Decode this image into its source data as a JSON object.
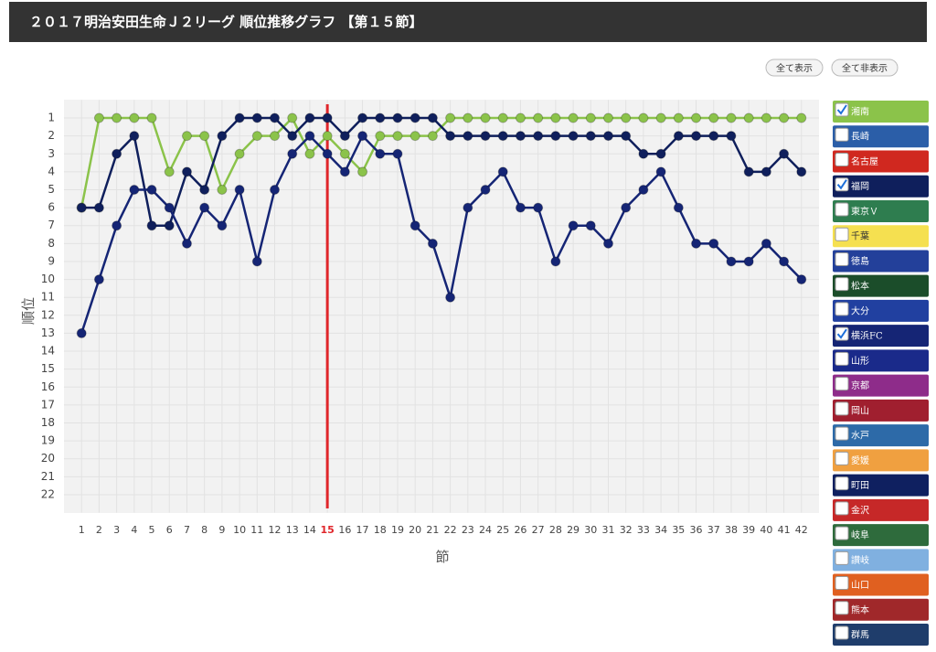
{
  "buttons": [
    "全て表示",
    "全て非表示"
  ],
  "chart_data": {
    "type": "line",
    "title": "２０１７明治安田生命Ｊ２リーグ 順位推移グラフ 【第１５節】",
    "x_label": "節",
    "y_label": "順位",
    "x": [
      1,
      2,
      3,
      4,
      5,
      6,
      7,
      8,
      9,
      10,
      11,
      12,
      13,
      14,
      15,
      16,
      17,
      18,
      19,
      20,
      21,
      22,
      23,
      24,
      25,
      26,
      27,
      28,
      29,
      30,
      31,
      32,
      33,
      34,
      35,
      36,
      37,
      38,
      39,
      40,
      41,
      42
    ],
    "xlim": [
      0,
      43
    ],
    "xticks": [
      1,
      2,
      3,
      4,
      5,
      6,
      7,
      8,
      9,
      10,
      11,
      12,
      13,
      14,
      15,
      16,
      17,
      18,
      19,
      20,
      21,
      22,
      23,
      24,
      25,
      26,
      27,
      28,
      29,
      30,
      31,
      32,
      33,
      34,
      35,
      36,
      37,
      38,
      39,
      40,
      41,
      42
    ],
    "ylim": [
      23,
      0
    ],
    "yticks": [
      1,
      2,
      3,
      4,
      5,
      6,
      7,
      8,
      9,
      10,
      11,
      12,
      13,
      14,
      15,
      16,
      17,
      18,
      19,
      20,
      21,
      22
    ],
    "grid": true,
    "current_round": 15,
    "current_color": "#e0262b",
    "series": [
      {
        "name": "湘南",
        "color": "#8bc34a",
        "checked": true,
        "values": [
          6,
          1,
          1,
          1,
          1,
          4,
          2,
          2,
          5,
          3,
          2,
          2,
          1,
          3,
          2,
          3,
          4,
          2,
          2,
          2,
          2,
          1,
          1,
          1,
          1,
          1,
          1,
          1,
          1,
          1,
          1,
          1,
          1,
          1,
          1,
          1,
          1,
          1,
          1,
          1,
          1,
          1
        ]
      },
      {
        "name": "長崎",
        "color": "#2b5ea8",
        "checked": false
      },
      {
        "name": "名古屋",
        "color": "#d0281f",
        "checked": false
      },
      {
        "name": "福岡",
        "color": "#0f1f5c",
        "checked": true,
        "values": [
          6,
          6,
          3,
          2,
          7,
          7,
          4,
          5,
          2,
          1,
          1,
          1,
          2,
          1,
          1,
          2,
          1,
          1,
          1,
          1,
          1,
          2,
          2,
          2,
          2,
          2,
          2,
          2,
          2,
          2,
          2,
          2,
          3,
          3,
          2,
          2,
          2,
          2,
          4,
          4,
          3,
          4
        ]
      },
      {
        "name": "東京Ｖ",
        "color": "#2e7d4f",
        "checked": false
      },
      {
        "name": "千葉",
        "color": "#f5e050",
        "checked": false
      },
      {
        "name": "徳島",
        "color": "#23409a",
        "checked": false
      },
      {
        "name": "松本",
        "color": "#1b4d2a",
        "checked": false
      },
      {
        "name": "大分",
        "color": "#2140a0",
        "checked": false
      },
      {
        "name": "横浜FC",
        "color": "#152575",
        "checked": true,
        "values": [
          13,
          10,
          7,
          5,
          5,
          6,
          8,
          6,
          7,
          5,
          9,
          5,
          3,
          2,
          3,
          4,
          2,
          3,
          3,
          7,
          8,
          11,
          6,
          5,
          4,
          6,
          6,
          9,
          7,
          7,
          8,
          6,
          5,
          4,
          6,
          8,
          8,
          9,
          9,
          8,
          9,
          10
        ]
      },
      {
        "name": "山形",
        "color": "#1a2a8a",
        "checked": false
      },
      {
        "name": "京都",
        "color": "#8e2c8a",
        "checked": false
      },
      {
        "name": "岡山",
        "color": "#a01f2f",
        "checked": false
      },
      {
        "name": "水戸",
        "color": "#2d6aa8",
        "checked": false
      },
      {
        "name": "愛媛",
        "color": "#f0a040",
        "checked": false
      },
      {
        "name": "町田",
        "color": "#0f2060",
        "checked": false
      },
      {
        "name": "金沢",
        "color": "#c62828",
        "checked": false
      },
      {
        "name": "岐阜",
        "color": "#2e6b3c",
        "checked": false
      },
      {
        "name": "讃岐",
        "color": "#80b0e0",
        "checked": false
      },
      {
        "name": "山口",
        "color": "#e06020",
        "checked": false
      },
      {
        "name": "熊本",
        "color": "#a0282a",
        "checked": false
      },
      {
        "name": "群馬",
        "color": "#1f3d6b",
        "checked": false
      }
    ]
  }
}
